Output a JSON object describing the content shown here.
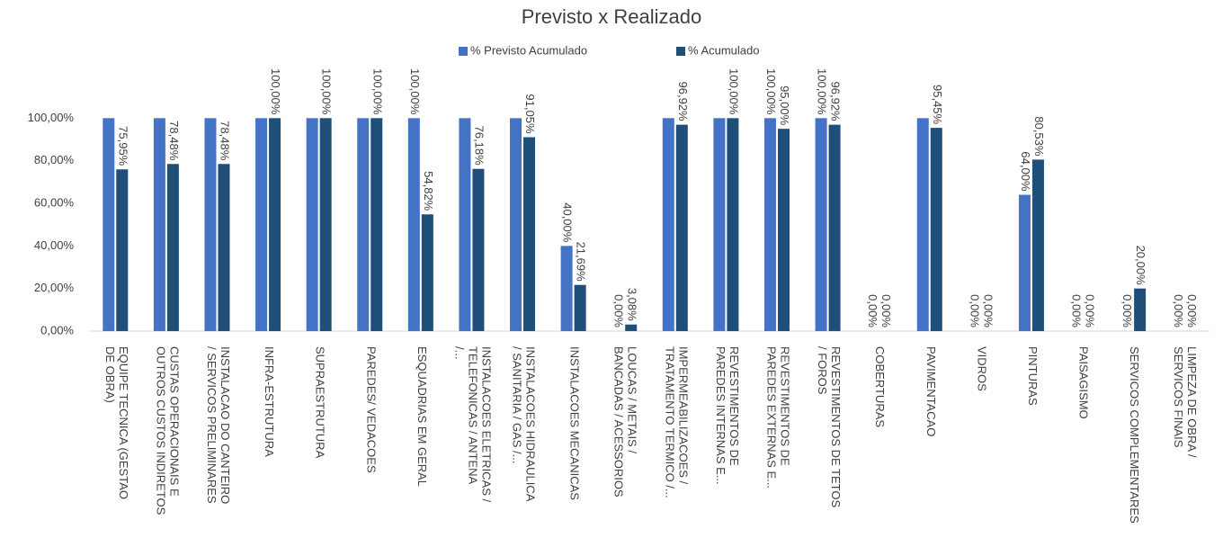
{
  "chart_data": {
    "type": "bar",
    "title": "Previsto x Realizado",
    "categories": [
      "EQUIPE TECNICA (GESTAO DE OBRA)",
      "CUSTAS OPERACIONAIS E OUTROS CUSTOS INDIRETOS",
      "INSTALACAO DO CANTEIRO / SERVICOS PRELIMINARES",
      "INFRA-ESTRUTURA",
      "SUPRAESTRUTURA",
      "PAREDES/ VEDACOES",
      "ESQUADRIAS EM GERAL",
      "INSTALACOES ELETRICAS / TELEFONICAS / ANTENA /...",
      "INSTALACOES HIDRAULICA / SANITARIA / GAS /...",
      "INSTALACOES MECANICAS",
      "LOUCAS / METAIS / BANCADAS / ACESSORIOS",
      "IMPERMEABILIZACOES / TRATAMENTO TERMICO /...",
      "REVESTIMENTOS DE PAREDES INTERNAS E...",
      "REVESTIMENTOS DE PAREDES EXTERNAS E...",
      "REVESTIMENTOS DE TETOS / FOROS",
      "COBERTURAS",
      "PAVIMENTACAO",
      "VIDROS",
      "PINTURAS",
      "PAISAGISMO",
      "SERVICOS COMPLEMENTARES",
      "LIMPEZA DE OBRA / SERVICOS FINAIS"
    ],
    "series": [
      {
        "name": "% Previsto Acumulado",
        "color": "#4472c4",
        "values": [
          100,
          100,
          100,
          100,
          100,
          100,
          100,
          100,
          100,
          40,
          0,
          100,
          100,
          100,
          100,
          0,
          100,
          0,
          64,
          0,
          0,
          0
        ],
        "value_labels": [
          null,
          null,
          null,
          null,
          null,
          null,
          "100,00%",
          null,
          null,
          "40,00%",
          "0,00%",
          null,
          null,
          "100,00%",
          "100,00%",
          "0,00%",
          null,
          "0,00%",
          "64,00%",
          "0,00%",
          "0,00%",
          "0,00%"
        ]
      },
      {
        "name": "% Acumulado",
        "color": "#1f4e79",
        "values": [
          75.95,
          78.48,
          78.48,
          100,
          100,
          100,
          54.82,
          76.18,
          91.05,
          21.69,
          3.08,
          96.92,
          100,
          95,
          96.92,
          0,
          95.45,
          0,
          80.53,
          0,
          20,
          0
        ],
        "value_labels": [
          "75,95%",
          "78,48%",
          "78,48%",
          "100,00%",
          "100,00%",
          "100,00%",
          "54,82%",
          "76,18%",
          "91,05%",
          "21,69%",
          "3,08%",
          "96,92%",
          "100,00%",
          "95,00%",
          "96,92%",
          "0,00%",
          "95,45%",
          "0,00%",
          "80,53%",
          "0,00%",
          "20,00%",
          "0,00%"
        ]
      }
    ],
    "ylim": [
      0,
      120
    ],
    "yticks": [
      {
        "value": 0,
        "label": "0,00%"
      },
      {
        "value": 20,
        "label": "20,00%"
      },
      {
        "value": 40,
        "label": "40,00%"
      },
      {
        "value": 60,
        "label": "60,00%"
      },
      {
        "value": 80,
        "label": "80,00%"
      },
      {
        "value": 100,
        "label": "100,00%"
      }
    ],
    "grid": false,
    "legend": "top"
  }
}
